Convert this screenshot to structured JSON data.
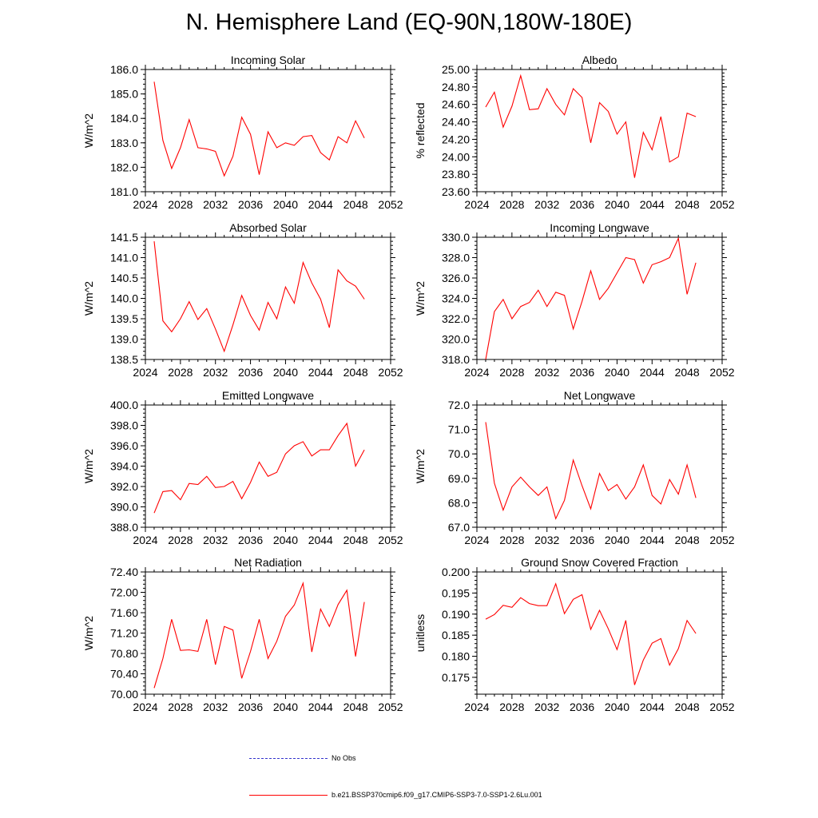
{
  "title": "N. Hemisphere Land (EQ-90N,180W-180E)",
  "legend": [
    {
      "label": "No Obs",
      "color": "#3333cc",
      "style": "dashed"
    },
    {
      "label": "b.e21.BSSP370cmip6.f09_g17.CMIP6-SSP3-7.0-SSP1-2.6Lu.001",
      "color": "#ff0000",
      "style": "solid"
    }
  ],
  "chart_data": [
    {
      "type": "line",
      "title": "Incoming Solar",
      "xlabel": "",
      "ylabel": "W/m^2",
      "xlim": [
        2024,
        2052
      ],
      "xticks": [
        "2024",
        "2028",
        "2032",
        "2036",
        "2040",
        "2044",
        "2048",
        "2052"
      ],
      "ylim": [
        181.0,
        186.0
      ],
      "yticks": [
        "181.0",
        "182.0",
        "183.0",
        "184.0",
        "185.0",
        "186.0"
      ],
      "ytick_step": 1.0,
      "series": [
        {
          "color": "#ff0000",
          "x": [
            2025,
            2026,
            2027,
            2028,
            2029,
            2030,
            2031,
            2032,
            2033,
            2034,
            2035,
            2036,
            2037,
            2038,
            2039,
            2040,
            2041,
            2042,
            2043,
            2044,
            2045,
            2046,
            2047,
            2048,
            2049
          ],
          "values": [
            185.5,
            183.1,
            181.95,
            182.8,
            183.95,
            182.8,
            182.75,
            182.65,
            181.65,
            182.45,
            184.05,
            183.35,
            181.7,
            183.45,
            182.8,
            183.0,
            182.9,
            183.25,
            183.3,
            182.6,
            182.3,
            183.25,
            183.0,
            183.9,
            183.2
          ]
        }
      ]
    },
    {
      "type": "line",
      "title": "Albedo",
      "xlabel": "",
      "ylabel": "% reflected",
      "xlim": [
        2024,
        2052
      ],
      "xticks": [
        "2024",
        "2028",
        "2032",
        "2036",
        "2040",
        "2044",
        "2048",
        "2052"
      ],
      "ylim": [
        23.6,
        25.0
      ],
      "yticks": [
        "23.60",
        "23.80",
        "24.00",
        "24.20",
        "24.40",
        "24.60",
        "24.80",
        "25.00"
      ],
      "ytick_step": 0.2,
      "series": [
        {
          "color": "#ff0000",
          "x": [
            2025,
            2026,
            2027,
            2028,
            2029,
            2030,
            2031,
            2032,
            2033,
            2034,
            2035,
            2036,
            2037,
            2038,
            2039,
            2040,
            2041,
            2042,
            2043,
            2044,
            2045,
            2046,
            2047,
            2048,
            2049
          ],
          "values": [
            24.57,
            24.74,
            24.34,
            24.58,
            24.93,
            24.54,
            24.55,
            24.78,
            24.6,
            24.48,
            24.78,
            24.68,
            24.16,
            24.62,
            24.52,
            24.26,
            24.4,
            23.76,
            24.28,
            24.08,
            24.46,
            23.94,
            24.0,
            24.5,
            24.46
          ]
        }
      ]
    },
    {
      "type": "line",
      "title": "Absorbed Solar",
      "xlabel": "",
      "ylabel": "W/m^2",
      "xlim": [
        2024,
        2052
      ],
      "xticks": [
        "2024",
        "2028",
        "2032",
        "2036",
        "2040",
        "2044",
        "2048",
        "2052"
      ],
      "ylim": [
        138.5,
        141.5
      ],
      "yticks": [
        "138.5",
        "139.0",
        "139.5",
        "140.0",
        "140.5",
        "141.0",
        "141.5"
      ],
      "ytick_step": 0.5,
      "series": [
        {
          "color": "#ff0000",
          "x": [
            2025,
            2026,
            2027,
            2028,
            2029,
            2030,
            2031,
            2032,
            2033,
            2034,
            2035,
            2036,
            2037,
            2038,
            2039,
            2040,
            2041,
            2042,
            2043,
            2044,
            2045,
            2046,
            2047,
            2048,
            2049
          ],
          "values": [
            141.4,
            139.45,
            139.18,
            139.5,
            139.92,
            139.48,
            139.75,
            139.25,
            138.7,
            139.35,
            140.07,
            139.58,
            139.22,
            139.9,
            139.5,
            140.28,
            139.88,
            140.88,
            140.38,
            139.98,
            139.28,
            140.7,
            140.43,
            140.3,
            139.98
          ]
        }
      ]
    },
    {
      "type": "line",
      "title": "Incoming Longwave",
      "xlabel": "",
      "ylabel": "W/m^2",
      "xlim": [
        2024,
        2052
      ],
      "xticks": [
        "2024",
        "2028",
        "2032",
        "2036",
        "2040",
        "2044",
        "2048",
        "2052"
      ],
      "ylim": [
        318.0,
        330.0
      ],
      "yticks": [
        "318.0",
        "320.0",
        "322.0",
        "324.0",
        "326.0",
        "328.0",
        "330.0"
      ],
      "ytick_step": 2.0,
      "series": [
        {
          "color": "#ff0000",
          "x": [
            2025,
            2026,
            2027,
            2028,
            2029,
            2030,
            2031,
            2032,
            2033,
            2034,
            2035,
            2036,
            2037,
            2038,
            2039,
            2040,
            2041,
            2042,
            2043,
            2044,
            2045,
            2046,
            2047,
            2048,
            2049
          ],
          "values": [
            318.0,
            322.7,
            323.9,
            322.0,
            323.2,
            323.6,
            324.8,
            323.2,
            324.6,
            324.3,
            321.0,
            323.7,
            326.7,
            323.9,
            325.0,
            326.5,
            328.0,
            327.8,
            325.5,
            327.3,
            327.6,
            328.0,
            329.9,
            324.4,
            327.5
          ]
        }
      ]
    },
    {
      "type": "line",
      "title": "Emitted Longwave",
      "xlabel": "",
      "ylabel": "W/m^2",
      "xlim": [
        2024,
        2052
      ],
      "xticks": [
        "2024",
        "2028",
        "2032",
        "2036",
        "2040",
        "2044",
        "2048",
        "2052"
      ],
      "ylim": [
        388.0,
        400.0
      ],
      "yticks": [
        "388.0",
        "390.0",
        "392.0",
        "394.0",
        "396.0",
        "398.0",
        "400.0"
      ],
      "ytick_step": 2.0,
      "series": [
        {
          "color": "#ff0000",
          "x": [
            2025,
            2026,
            2027,
            2028,
            2029,
            2030,
            2031,
            2032,
            2033,
            2034,
            2035,
            2036,
            2037,
            2038,
            2039,
            2040,
            2041,
            2042,
            2043,
            2044,
            2045,
            2046,
            2047,
            2048,
            2049
          ],
          "values": [
            389.4,
            391.5,
            391.6,
            390.7,
            392.3,
            392.2,
            393.0,
            391.9,
            392.0,
            392.5,
            390.8,
            392.4,
            394.4,
            393.0,
            393.4,
            395.2,
            396.0,
            396.4,
            395.0,
            395.6,
            395.6,
            397.0,
            398.2,
            394.0,
            395.6
          ]
        }
      ]
    },
    {
      "type": "line",
      "title": "Net Longwave",
      "xlabel": "",
      "ylabel": "W/m^2",
      "xlim": [
        2024,
        2052
      ],
      "xticks": [
        "2024",
        "2028",
        "2032",
        "2036",
        "2040",
        "2044",
        "2048",
        "2052"
      ],
      "ylim": [
        67.0,
        72.0
      ],
      "yticks": [
        "67.0",
        "68.0",
        "69.0",
        "70.0",
        "71.0",
        "72.0"
      ],
      "ytick_step": 1.0,
      "series": [
        {
          "color": "#ff0000",
          "x": [
            2025,
            2026,
            2027,
            2028,
            2029,
            2030,
            2031,
            2032,
            2033,
            2034,
            2035,
            2036,
            2037,
            2038,
            2039,
            2040,
            2041,
            2042,
            2043,
            2044,
            2045,
            2046,
            2047,
            2048,
            2049
          ],
          "values": [
            71.3,
            68.8,
            67.7,
            68.65,
            69.05,
            68.65,
            68.3,
            68.65,
            67.35,
            68.1,
            69.75,
            68.7,
            67.75,
            69.2,
            68.5,
            68.75,
            68.15,
            68.65,
            69.55,
            68.3,
            67.95,
            68.95,
            68.35,
            69.55,
            68.2
          ]
        }
      ]
    },
    {
      "type": "line",
      "title": "Net Radiation",
      "xlabel": "",
      "ylabel": "W/m^2",
      "xlim": [
        2024,
        2052
      ],
      "xticks": [
        "2024",
        "2028",
        "2032",
        "2036",
        "2040",
        "2044",
        "2048",
        "2052"
      ],
      "ylim": [
        70.0,
        72.4
      ],
      "yticks": [
        "70.00",
        "70.40",
        "70.80",
        "71.20",
        "71.60",
        "72.00",
        "72.40"
      ],
      "ytick_step": 0.4,
      "series": [
        {
          "color": "#ff0000",
          "x": [
            2025,
            2026,
            2027,
            2028,
            2029,
            2030,
            2031,
            2032,
            2033,
            2034,
            2035,
            2036,
            2037,
            2038,
            2039,
            2040,
            2041,
            2042,
            2043,
            2044,
            2045,
            2046,
            2047,
            2048,
            2049
          ],
          "values": [
            70.12,
            70.7,
            71.47,
            70.86,
            70.87,
            70.84,
            71.47,
            70.58,
            71.33,
            71.26,
            70.31,
            70.84,
            71.47,
            70.7,
            71.04,
            71.53,
            71.75,
            72.18,
            70.83,
            71.67,
            71.33,
            71.76,
            72.04,
            70.74,
            71.81
          ]
        }
      ]
    },
    {
      "type": "line",
      "title": "Ground Snow Covered Fraction",
      "xlabel": "",
      "ylabel": "unitless",
      "xlim": [
        2024,
        2052
      ],
      "xticks": [
        "2024",
        "2028",
        "2032",
        "2036",
        "2040",
        "2044",
        "2048",
        "2052"
      ],
      "ylim": [
        0.171,
        0.2
      ],
      "yticks": [
        "0.175",
        "0.180",
        "0.185",
        "0.190",
        "0.195",
        "0.200"
      ],
      "ytick_step": 0.005,
      "series": [
        {
          "color": "#ff0000",
          "x": [
            2025,
            2026,
            2027,
            2028,
            2029,
            2030,
            2031,
            2032,
            2033,
            2034,
            2035,
            2036,
            2037,
            2038,
            2039,
            2040,
            2041,
            2042,
            2043,
            2044,
            2045,
            2046,
            2047,
            2048,
            2049
          ],
          "values": [
            0.1888,
            0.1899,
            0.1921,
            0.1916,
            0.1939,
            0.1925,
            0.192,
            0.192,
            0.1972,
            0.1901,
            0.1935,
            0.1946,
            0.1864,
            0.1909,
            0.1865,
            0.1816,
            0.1885,
            0.1732,
            0.1791,
            0.1831,
            0.1842,
            0.1779,
            0.1818,
            0.1885,
            0.1854
          ]
        }
      ]
    }
  ]
}
